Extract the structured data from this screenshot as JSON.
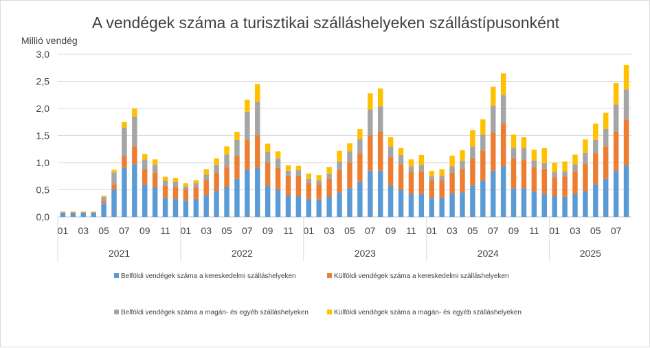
{
  "chart_data": {
    "type": "bar",
    "stacked": true,
    "title": "A vendégek száma a turisztikai szálláshelyeken szállástípusonként",
    "ylabel": "Millió vendég",
    "xlabel": "",
    "ylim": [
      0,
      3.0
    ],
    "yticks": [
      "0,0",
      "0,5",
      "1,0",
      "1,5",
      "2,0",
      "2,5",
      "3,0"
    ],
    "grid": true,
    "legend_position": "bottom",
    "years": [
      "2021",
      "2022",
      "2023",
      "2024",
      "2025"
    ],
    "categories": [
      "01",
      "02",
      "03",
      "04",
      "05",
      "06",
      "07",
      "08",
      "09",
      "10",
      "11",
      "12",
      "01",
      "02",
      "03",
      "04",
      "05",
      "06",
      "07",
      "08",
      "09",
      "10",
      "11",
      "12",
      "01",
      "02",
      "03",
      "04",
      "05",
      "06",
      "07",
      "08",
      "09",
      "10",
      "11",
      "12",
      "01",
      "02",
      "03",
      "04",
      "05",
      "06",
      "07",
      "08",
      "09",
      "10",
      "11",
      "12",
      "01",
      "02",
      "03",
      "04",
      "05",
      "06",
      "07",
      "08"
    ],
    "tick_labels": [
      "01",
      "",
      "03",
      "",
      "05",
      "",
      "07",
      "",
      "09",
      "",
      "11",
      "",
      "01",
      "",
      "03",
      "",
      "05",
      "",
      "07",
      "",
      "09",
      "",
      "11",
      "",
      "01",
      "",
      "03",
      "",
      "05",
      "",
      "07",
      "",
      "09",
      "",
      "11",
      "",
      "01",
      "",
      "03",
      "",
      "05",
      "",
      "07",
      "",
      "09",
      "",
      "11",
      "",
      "01",
      "",
      "03",
      "",
      "05",
      "",
      "07",
      ""
    ],
    "series": [
      {
        "name": "Belföldi vendégek száma a kereskedelmi szálláshelyeken",
        "color": "#5b9bd5",
        "values": [
          0.07,
          0.07,
          0.07,
          0.07,
          0.25,
          0.5,
          0.9,
          0.97,
          0.6,
          0.55,
          0.35,
          0.33,
          0.3,
          0.33,
          0.4,
          0.48,
          0.55,
          0.7,
          0.87,
          0.9,
          0.57,
          0.5,
          0.4,
          0.38,
          0.33,
          0.32,
          0.38,
          0.45,
          0.53,
          0.65,
          0.85,
          0.85,
          0.58,
          0.5,
          0.43,
          0.42,
          0.35,
          0.35,
          0.43,
          0.45,
          0.58,
          0.67,
          0.85,
          0.93,
          0.53,
          0.53,
          0.47,
          0.42,
          0.38,
          0.37,
          0.42,
          0.48,
          0.6,
          0.7,
          0.85,
          0.95
        ]
      },
      {
        "name": "Külföldi vendégek száma a kereskedelmi szálláshelyeken",
        "color": "#ed7d31",
        "values": [
          0.01,
          0.01,
          0.01,
          0.01,
          0.05,
          0.1,
          0.22,
          0.33,
          0.28,
          0.27,
          0.22,
          0.22,
          0.2,
          0.22,
          0.28,
          0.33,
          0.37,
          0.42,
          0.55,
          0.6,
          0.43,
          0.4,
          0.35,
          0.38,
          0.3,
          0.28,
          0.32,
          0.42,
          0.48,
          0.52,
          0.65,
          0.72,
          0.52,
          0.47,
          0.4,
          0.42,
          0.32,
          0.33,
          0.38,
          0.43,
          0.5,
          0.55,
          0.7,
          0.8,
          0.55,
          0.52,
          0.45,
          0.47,
          0.35,
          0.37,
          0.42,
          0.5,
          0.57,
          0.6,
          0.72,
          0.85
        ]
      },
      {
        "name": "Belföldi vendégek száma a magán- és egyéb szálláshelyeken",
        "color": "#a5a5a5",
        "values": [
          0.01,
          0.01,
          0.01,
          0.01,
          0.07,
          0.22,
          0.53,
          0.55,
          0.18,
          0.14,
          0.1,
          0.1,
          0.06,
          0.07,
          0.1,
          0.15,
          0.23,
          0.3,
          0.52,
          0.62,
          0.2,
          0.18,
          0.1,
          0.1,
          0.07,
          0.07,
          0.1,
          0.15,
          0.2,
          0.27,
          0.48,
          0.47,
          0.2,
          0.17,
          0.1,
          0.12,
          0.08,
          0.08,
          0.12,
          0.15,
          0.22,
          0.3,
          0.5,
          0.52,
          0.2,
          0.22,
          0.12,
          0.1,
          0.1,
          0.1,
          0.13,
          0.2,
          0.25,
          0.32,
          0.5,
          0.55
        ]
      },
      {
        "name": "Külföldi vendégek száma a magán- és egyéb szálláshelyeken",
        "color": "#ffc000",
        "values": [
          0.01,
          0.01,
          0.01,
          0.01,
          0.02,
          0.05,
          0.1,
          0.15,
          0.1,
          0.1,
          0.07,
          0.07,
          0.06,
          0.06,
          0.1,
          0.12,
          0.15,
          0.15,
          0.22,
          0.33,
          0.15,
          0.13,
          0.1,
          0.08,
          0.1,
          0.1,
          0.12,
          0.2,
          0.15,
          0.18,
          0.3,
          0.33,
          0.17,
          0.13,
          0.13,
          0.18,
          0.1,
          0.12,
          0.2,
          0.2,
          0.3,
          0.28,
          0.35,
          0.4,
          0.24,
          0.2,
          0.2,
          0.28,
          0.17,
          0.18,
          0.18,
          0.25,
          0.3,
          0.3,
          0.4,
          0.45
        ]
      }
    ]
  }
}
